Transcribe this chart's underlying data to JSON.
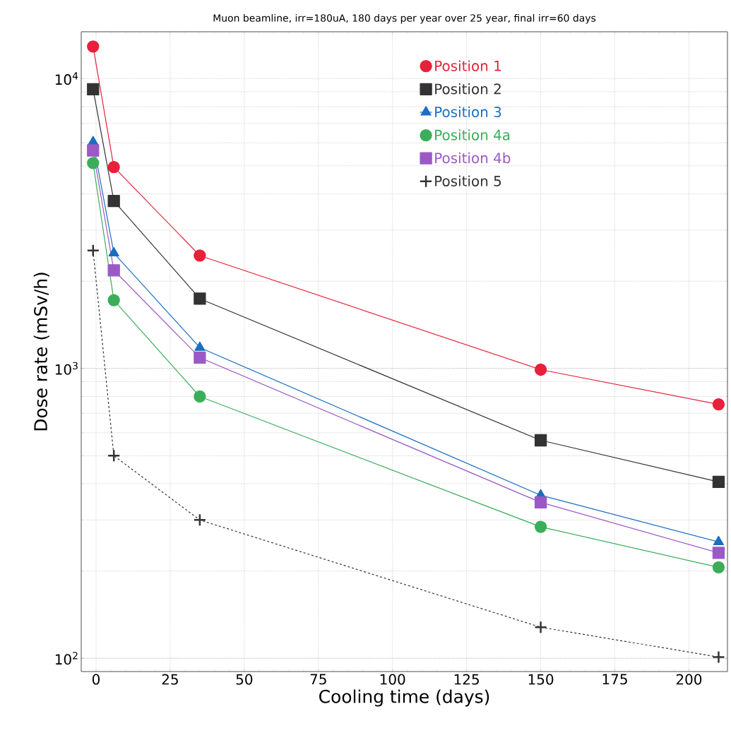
{
  "chart_data": {
    "type": "line",
    "title": "Muon beamline, irr=180uA, 180 days per year over 25 year, final irr=60 days",
    "xlabel": "Cooling time (days)",
    "ylabel": "Dose rate (mSv/h)",
    "x": [
      -1,
      6,
      35,
      150,
      210
    ],
    "series": [
      {
        "name": "Position 1",
        "color": "#e8203a",
        "marker": "circle",
        "line_style": "solid",
        "values": [
          12900,
          4950,
          2450,
          990,
          752
        ]
      },
      {
        "name": "Position 2",
        "color": "#333333",
        "marker": "square",
        "line_style": "solid",
        "values": [
          9180,
          3780,
          1740,
          565,
          406
        ]
      },
      {
        "name": "Position 3",
        "color": "#1a6fc0",
        "marker": "triangle",
        "line_style": "solid",
        "values": [
          6040,
          2500,
          1180,
          365,
          252
        ]
      },
      {
        "name": "Position 4a",
        "color": "#3cae5a",
        "marker": "circle",
        "line_style": "solid",
        "values": [
          5110,
          1720,
          800,
          284,
          206
        ]
      },
      {
        "name": "Position 4b",
        "color": "#9b59c6",
        "marker": "square",
        "line_style": "solid",
        "values": [
          5650,
          2180,
          1090,
          345,
          231
        ]
      },
      {
        "name": "Position 5",
        "color": "#333333",
        "marker": "cross",
        "line_style": "dashed",
        "values": [
          2550,
          500,
          300,
          128,
          101
        ]
      }
    ],
    "log": "y",
    "grid": true,
    "legend": "top right",
    "xlim": [
      -5,
      213
    ],
    "xticks": [
      0,
      25,
      50,
      75,
      100,
      125,
      150,
      175,
      200
    ],
    "ylim": [
      90,
      14500
    ],
    "yticks": [
      {
        "value": 100,
        "label": "10$^{2}$"
      },
      {
        "value": 1000,
        "label": "10$^{3}$"
      },
      {
        "value": 10000,
        "label": "10$^{4}$"
      }
    ]
  }
}
